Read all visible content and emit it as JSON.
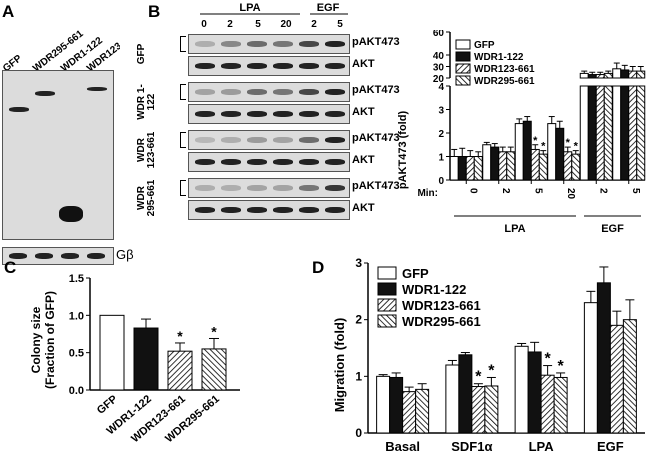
{
  "panelA": {
    "letter": "A",
    "lanes": [
      "GFP",
      "WDR295-661",
      "WDR1-122",
      "WDR123-661"
    ],
    "loading_label": "Gβ"
  },
  "panelB": {
    "letter": "B",
    "groups": [
      {
        "name": "LPA",
        "doses": [
          "0",
          "2",
          "5",
          "20"
        ]
      },
      {
        "name": "EGF",
        "doses": [
          "2",
          "5"
        ]
      }
    ],
    "rows": [
      {
        "sample": "GFP",
        "bands": [
          "pAKT473",
          "AKT"
        ]
      },
      {
        "sample": "WDR 1-122",
        "bands": [
          "pAKT473",
          "AKT"
        ]
      },
      {
        "sample": "WDR 123-661",
        "bands": [
          "pAKT473",
          "AKT"
        ]
      },
      {
        "sample": "WDR 295-661",
        "bands": [
          "pAKT473",
          "AKT"
        ]
      }
    ]
  },
  "panelC": {
    "letter": "C"
  },
  "panelD": {
    "letter": "D"
  },
  "chart_data": [
    {
      "id": "B-bar",
      "type": "bar",
      "ylabel": "pAKT473 (fold)",
      "xlabel_prefix": "Min:",
      "categories": [
        "0",
        "2",
        "5",
        "20",
        "2",
        "5"
      ],
      "groups": [
        {
          "name": "LPA",
          "from": 0,
          "to": 3
        },
        {
          "name": "EGF",
          "from": 4,
          "to": 5
        }
      ],
      "y_ticks_lower": [
        "0",
        "1",
        "2",
        "3",
        "4"
      ],
      "y_ticks_upper": [
        "20",
        "30",
        "40",
        "60"
      ],
      "ylim_lower": [
        0,
        4
      ],
      "ylim_upper": [
        20,
        60
      ],
      "series": [
        {
          "name": "GFP",
          "values": [
            1.0,
            1.5,
            2.4,
            2.4,
            24,
            28
          ],
          "errors": [
            0.3,
            0.1,
            0.2,
            0.3,
            2,
            5
          ],
          "fill": "#ffffff"
        },
        {
          "name": "WDR1-122",
          "values": [
            1.0,
            1.4,
            2.5,
            2.2,
            23,
            27
          ],
          "errors": [
            0.35,
            0.15,
            0.2,
            0.3,
            2,
            4
          ],
          "fill": "#111111"
        },
        {
          "name": "WDR123-661",
          "values": [
            1.0,
            1.2,
            1.3,
            1.2,
            23,
            26
          ],
          "errors": [
            0.25,
            0.2,
            0.2,
            0.2,
            2,
            4
          ],
          "fill": "hatch"
        },
        {
          "name": "WDR295-661",
          "values": [
            1.0,
            1.2,
            1.1,
            1.1,
            24,
            26
          ],
          "errors": [
            0.2,
            0.2,
            0.15,
            0.15,
            2,
            4
          ],
          "fill": "hatch2"
        }
      ],
      "star_label": "*"
    },
    {
      "id": "C",
      "type": "bar",
      "ylabel": "Colony size",
      "ylabel2": "(Fraction of GFP)",
      "categories": [
        "GFP",
        "WDR1-122",
        "WDR123-661",
        "WDR295-661"
      ],
      "values": [
        1.0,
        0.83,
        0.52,
        0.55
      ],
      "errors": [
        0,
        0.12,
        0.11,
        0.14
      ],
      "fills": [
        "#ffffff",
        "#111111",
        "hatch",
        "hatch2"
      ],
      "ylim": [
        0,
        1.5
      ],
      "y_ticks": [
        "0.0",
        "0.5",
        "1.0",
        "1.5"
      ],
      "stars": [
        "",
        "",
        "*",
        "*"
      ]
    },
    {
      "id": "D",
      "type": "bar",
      "ylabel": "Migration (fold)",
      "categories": [
        "Basal",
        "SDF1α",
        "LPA",
        "EGF"
      ],
      "ylim": [
        0,
        3
      ],
      "y_ticks": [
        "0",
        "1",
        "2",
        "3"
      ],
      "series": [
        {
          "name": "GFP",
          "values": [
            1.0,
            1.2,
            1.53,
            2.3
          ],
          "errors": [
            0.03,
            0.08,
            0.05,
            0.2
          ],
          "fill": "#ffffff"
        },
        {
          "name": "WDR1-122",
          "values": [
            0.98,
            1.38,
            1.43,
            2.65
          ],
          "errors": [
            0.08,
            0.04,
            0.17,
            0.28
          ],
          "fill": "#111111"
        },
        {
          "name": "WDR123-661",
          "values": [
            0.73,
            0.82,
            1.02,
            1.9
          ],
          "errors": [
            0.08,
            0.05,
            0.17,
            0.25
          ],
          "fill": "hatch"
        },
        {
          "name": "WDR295-661",
          "values": [
            0.77,
            0.83,
            0.98,
            2.0
          ],
          "errors": [
            0.1,
            0.15,
            0.08,
            0.35
          ],
          "fill": "hatch2"
        }
      ],
      "stars": [
        [
          "",
          "",
          "",
          ""
        ],
        [
          "",
          "",
          "*",
          "*"
        ],
        [
          "",
          "",
          "*",
          "*"
        ],
        [
          "",
          "",
          "",
          ""
        ]
      ]
    }
  ]
}
